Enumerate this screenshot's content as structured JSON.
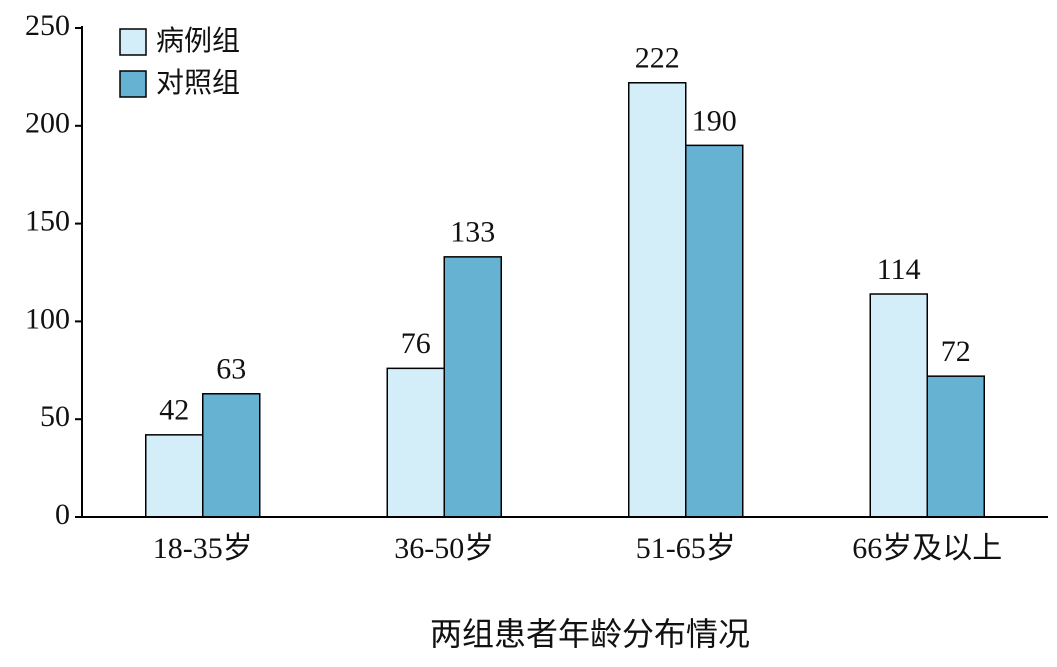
{
  "chart_data": {
    "type": "bar",
    "xlabel": "两组患者年龄分布情况",
    "categories": [
      "18-35岁",
      "36-50岁",
      "51-65岁",
      "66岁及以上"
    ],
    "series": [
      {
        "name": "病例组",
        "color": "#d4eef9",
        "values": [
          42,
          76,
          222,
          114
        ]
      },
      {
        "name": "对照组",
        "color": "#66b2d3",
        "values": [
          63,
          133,
          190,
          72
        ]
      }
    ],
    "ylim": [
      0,
      250
    ],
    "yticks": [
      0,
      50,
      100,
      150,
      200,
      250
    ],
    "grid": false,
    "legend": "top-left"
  }
}
